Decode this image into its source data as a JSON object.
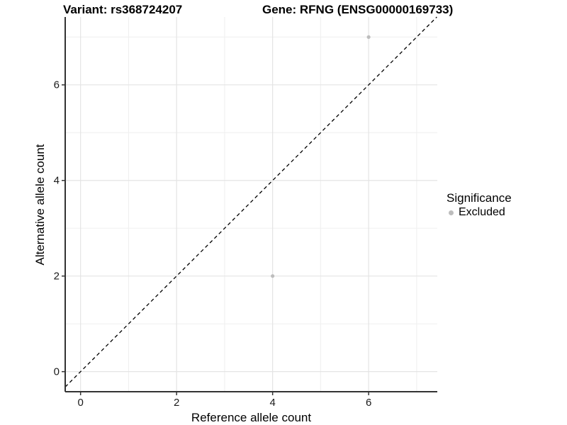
{
  "chart_data": {
    "type": "scatter",
    "title_left": "Variant: rs368724207",
    "title_right": "Gene: RFNG (ENSG00000169733)",
    "xlabel": "Reference allele count",
    "ylabel": "Alternative allele count",
    "x_ticks": [
      0,
      2,
      4,
      6
    ],
    "y_ticks": [
      0,
      2,
      4,
      6
    ],
    "x_minor_gridlines": [
      1,
      3,
      5,
      7
    ],
    "y_minor_gridlines": [
      1,
      3,
      5,
      7
    ],
    "xlim": [
      -0.32,
      7.43
    ],
    "ylim": [
      -0.42,
      7.42
    ],
    "grid": true,
    "points": [
      {
        "x": 6,
        "y": 7,
        "significance": "Excluded"
      },
      {
        "x": 4,
        "y": 2,
        "significance": "Excluded"
      }
    ],
    "identity_line": {
      "equation": "y = x",
      "style": "dashed",
      "color": "#000000"
    },
    "legend": {
      "title": "Significance",
      "position": "right",
      "items": [
        {
          "label": "Excluded",
          "color": "#bdbdbd"
        }
      ]
    },
    "colors": {
      "point": "#bdbdbd",
      "grid_major": "#e4e4e4",
      "grid_minor": "#f0f0f0",
      "axis_line": "#333333",
      "tick_mark": "#333333"
    }
  }
}
